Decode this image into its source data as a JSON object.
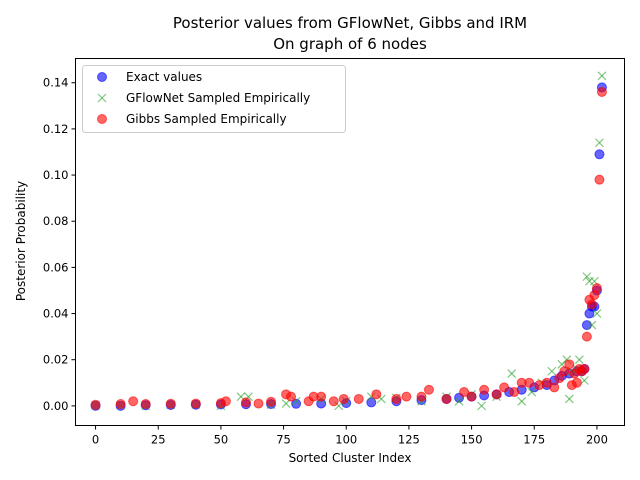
{
  "chart_data": {
    "type": "scatter",
    "title_line1": "Posterior values from GFlowNet, Gibbs and IRM",
    "title_line2": "On graph of 6 nodes",
    "xlabel": "Sorted Cluster Index",
    "ylabel": "Posterior Probability",
    "xlim": [
      -8,
      211
    ],
    "ylim": [
      -0.0085,
      0.1505
    ],
    "x_ticks": [
      0,
      25,
      50,
      75,
      100,
      125,
      150,
      175,
      200
    ],
    "y_ticks": [
      0.0,
      0.02,
      0.04,
      0.06,
      0.08,
      0.1,
      0.12,
      0.14
    ],
    "y_tick_labels": [
      "0.00",
      "0.02",
      "0.04",
      "0.06",
      "0.08",
      "0.10",
      "0.12",
      "0.14"
    ],
    "grid": false,
    "legend_position": "top-left",
    "series": [
      {
        "name": "Exact values",
        "marker": "circle",
        "color": "#0000ff",
        "x": [
          0,
          10,
          20,
          30,
          40,
          50,
          60,
          70,
          80,
          90,
          100,
          110,
          120,
          130,
          140,
          145,
          150,
          155,
          160,
          165,
          170,
          175,
          180,
          183,
          186,
          189,
          192,
          194,
          195,
          196,
          197,
          198,
          199,
          200,
          201,
          202
        ],
        "y": [
          0.0,
          0.0,
          0.0003,
          0.0004,
          0.0005,
          0.0006,
          0.0007,
          0.0008,
          0.0009,
          0.001,
          0.0012,
          0.0015,
          0.002,
          0.0025,
          0.003,
          0.0035,
          0.004,
          0.0045,
          0.005,
          0.006,
          0.007,
          0.008,
          0.009,
          0.011,
          0.013,
          0.014,
          0.015,
          0.015,
          0.016,
          0.035,
          0.04,
          0.043,
          0.043,
          0.05,
          0.109,
          0.138
        ]
      },
      {
        "name": "GFlowNet Sampled Empirically",
        "marker": "x",
        "color": "#2ca02c",
        "x": [
          0,
          10,
          20,
          30,
          40,
          50,
          58,
          61,
          70,
          76,
          80,
          90,
          97,
          100,
          110,
          114,
          120,
          130,
          140,
          145,
          150,
          154,
          160,
          166,
          170,
          174,
          178,
          182,
          186,
          188,
          189,
          190,
          192,
          193,
          195,
          196,
          197,
          198,
          199,
          200,
          201,
          202
        ],
        "y": [
          0.0002,
          0.0003,
          0.0,
          0.0004,
          0.0006,
          0.0,
          0.004,
          0.004,
          0.0005,
          0.001,
          0.002,
          0.003,
          0.0,
          0.002,
          0.004,
          0.003,
          0.0035,
          0.002,
          0.004,
          0.002,
          0.005,
          0.0,
          0.004,
          0.014,
          0.002,
          0.006,
          0.01,
          0.015,
          0.018,
          0.02,
          0.003,
          0.015,
          0.016,
          0.02,
          0.011,
          0.056,
          0.054,
          0.035,
          0.054,
          0.04,
          0.114,
          0.143
        ]
      },
      {
        "name": "Gibbs Sampled Empirically",
        "marker": "circle",
        "color": "#ff0000",
        "x": [
          0,
          10,
          15,
          20,
          30,
          40,
          50,
          52,
          60,
          65,
          70,
          76,
          78,
          85,
          87,
          90,
          95,
          99,
          105,
          112,
          120,
          124,
          130,
          133,
          140,
          147,
          150,
          155,
          160,
          163,
          167,
          170,
          173,
          177,
          180,
          183,
          185,
          187,
          189,
          190,
          191,
          192,
          193,
          194,
          195,
          196,
          197,
          198,
          199,
          200,
          201,
          202
        ],
        "y": [
          0.0005,
          0.0008,
          0.002,
          0.0008,
          0.0009,
          0.001,
          0.0012,
          0.002,
          0.0015,
          0.001,
          0.0018,
          0.005,
          0.004,
          0.002,
          0.004,
          0.004,
          0.002,
          0.003,
          0.003,
          0.005,
          0.003,
          0.004,
          0.004,
          0.007,
          0.003,
          0.006,
          0.004,
          0.007,
          0.005,
          0.008,
          0.006,
          0.01,
          0.01,
          0.009,
          0.01,
          0.008,
          0.012,
          0.015,
          0.018,
          0.009,
          0.014,
          0.01,
          0.016,
          0.015,
          0.016,
          0.03,
          0.046,
          0.044,
          0.048,
          0.051,
          0.098,
          0.136
        ]
      }
    ]
  }
}
